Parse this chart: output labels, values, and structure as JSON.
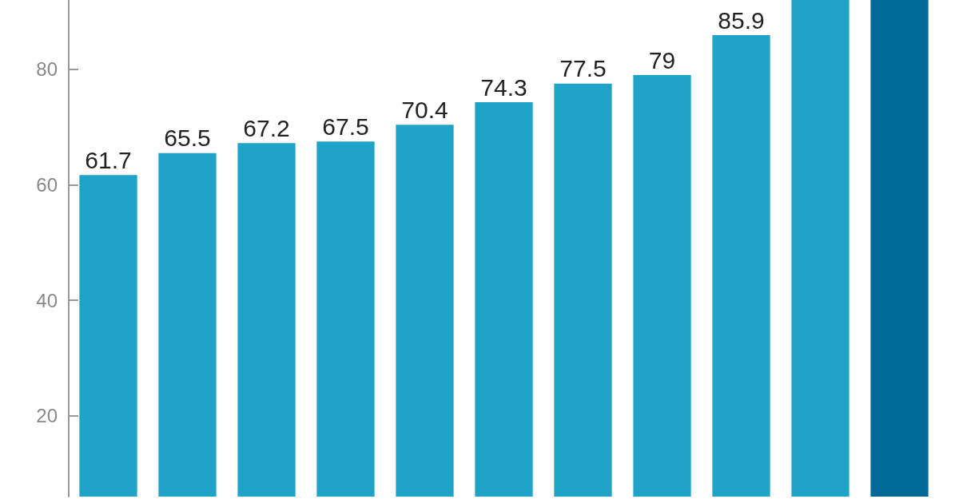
{
  "chart_data": {
    "type": "bar",
    "categories": [
      null,
      null,
      null,
      null,
      null,
      null,
      null,
      null,
      null,
      null,
      null
    ],
    "values": [
      61.7,
      65.5,
      67.2,
      67.5,
      70.4,
      74.3,
      77.5,
      79,
      85.9,
      92,
      92
    ],
    "colors": [
      "#20a3c8",
      "#20a3c8",
      "#20a3c8",
      "#20a3c8",
      "#20a3c8",
      "#20a3c8",
      "#20a3c8",
      "#20a3c8",
      "#20a3c8",
      "#20a3c8",
      "#006a96"
    ],
    "value_labels": [
      "61.7",
      "65.5",
      "67.2",
      "67.5",
      "70.4",
      "74.3",
      "77.5",
      "79",
      "85.9",
      null,
      null
    ],
    "ylim": [
      6,
      92
    ],
    "yticks": [
      20,
      40,
      60,
      80
    ],
    "grid": false
  }
}
